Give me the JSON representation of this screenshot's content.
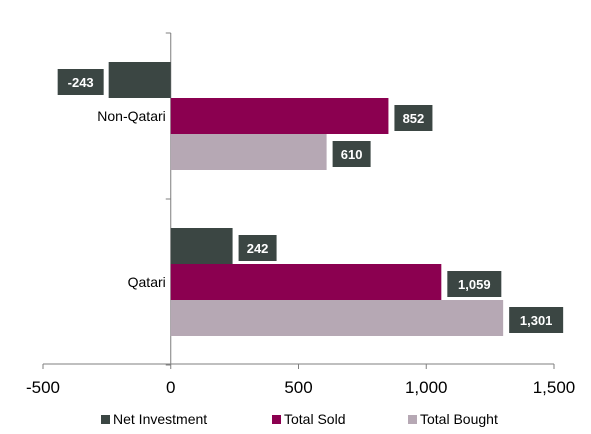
{
  "chart_data": {
    "type": "bar",
    "orientation": "horizontal",
    "categories": [
      "Non-Qatari",
      "Qatari"
    ],
    "series": [
      {
        "name": "Net Investment",
        "color": "#3b4643",
        "values": [
          -243,
          242
        ],
        "labels": [
          "-243",
          "242"
        ]
      },
      {
        "name": "Total Sold",
        "color": "#8b0050",
        "values": [
          852,
          1059
        ],
        "labels": [
          "852",
          "1,059"
        ]
      },
      {
        "name": "Total Bought",
        "color": "#b6a8b4",
        "values": [
          610,
          1301
        ],
        "labels": [
          "610",
          "1,301"
        ]
      }
    ],
    "xlim": [
      -500,
      1500
    ],
    "xticks": [
      -500,
      0,
      500,
      1000,
      1500
    ],
    "xtick_labels": [
      "-500",
      "0",
      "500",
      "1,000",
      "1,500"
    ],
    "label_box_color": "#3b4643",
    "grid": false,
    "legend_position": "bottom"
  }
}
